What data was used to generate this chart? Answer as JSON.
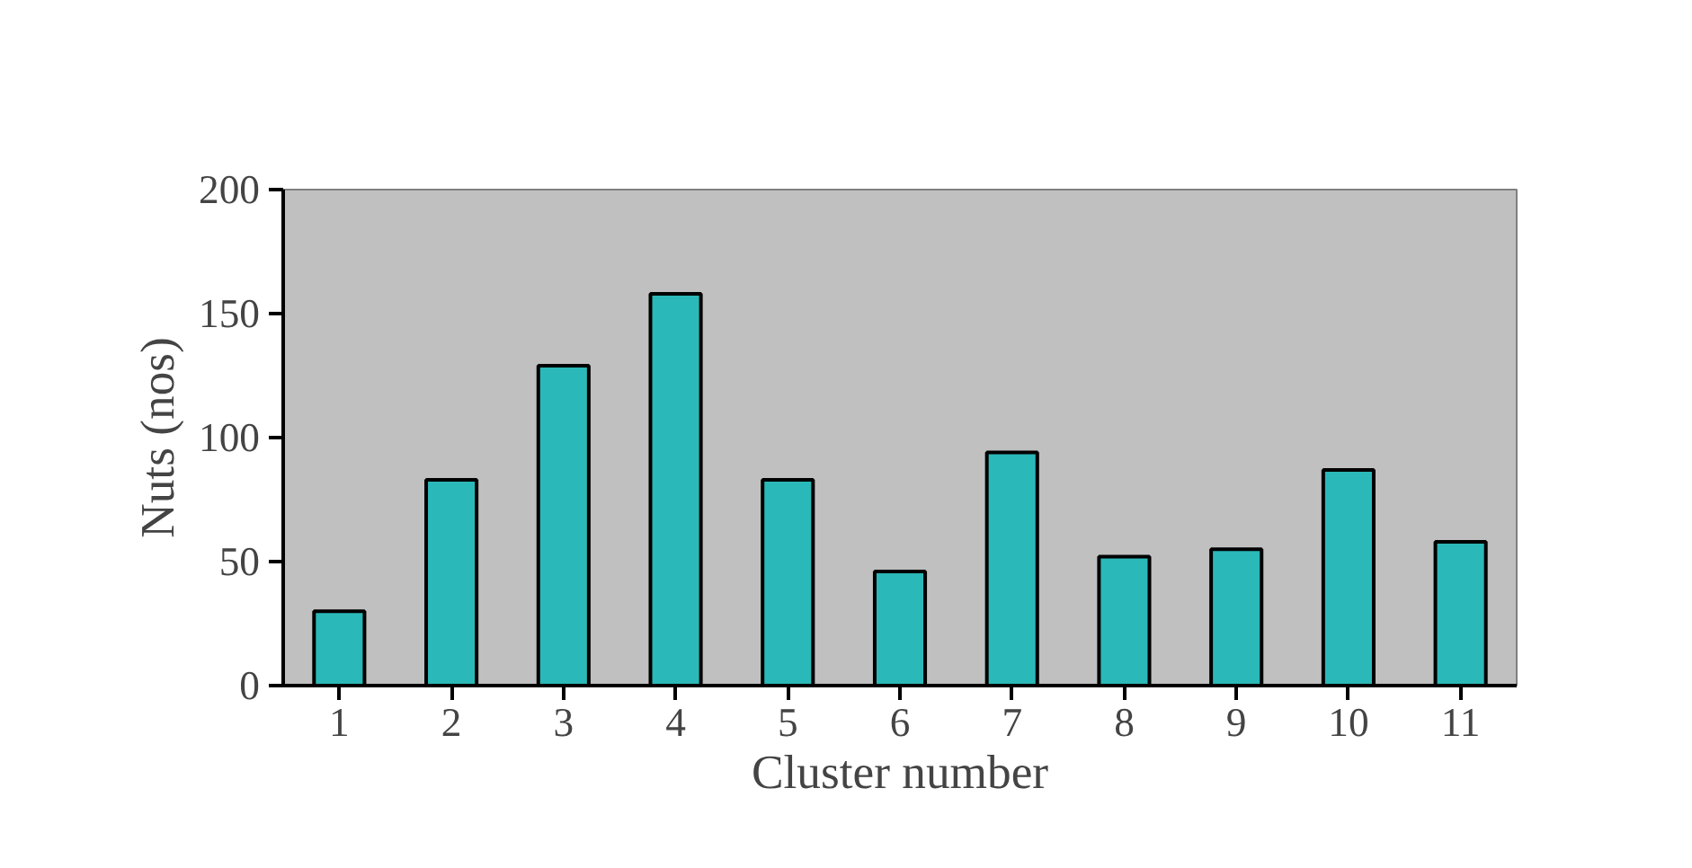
{
  "chart_data": {
    "type": "bar",
    "xlabel": "Cluster number",
    "ylabel": "Nuts (nos)",
    "categories": [
      "1",
      "2",
      "3",
      "4",
      "5",
      "6",
      "7",
      "8",
      "9",
      "10",
      "11"
    ],
    "values": [
      30,
      83,
      129,
      158,
      83,
      46,
      94,
      52,
      55,
      87,
      58
    ],
    "color": "#2bb8b8",
    "ylim": [
      0,
      200
    ],
    "yticks": [
      0,
      50,
      100,
      150,
      200
    ],
    "grid": false
  }
}
